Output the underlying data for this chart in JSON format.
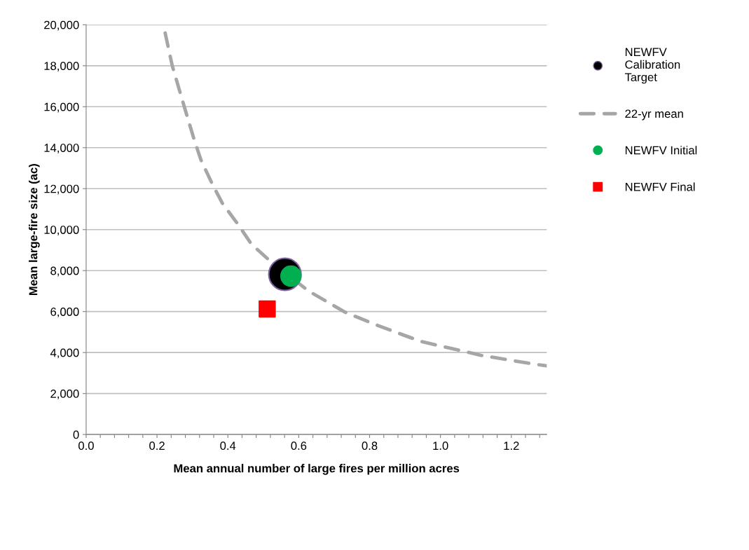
{
  "chart_data": {
    "type": "scatter",
    "xlabel": "Mean annual number of large fires per million acres",
    "ylabel": "Mean large-fire size (ac)",
    "series": [
      {
        "name": "NEWFV\nCalibration\nTarget",
        "marker": "circle",
        "color": "#000000",
        "x": [
          0.561
        ],
        "values": [
          7820
        ]
      },
      {
        "name": "22-yr mean",
        "type": "line",
        "marker": "none",
        "line_style": "dashed",
        "color": "#a6a6a6",
        "x": [
          0.223,
          0.243,
          0.277,
          0.303,
          0.324,
          0.354,
          0.384,
          0.431,
          0.466,
          0.517,
          0.628,
          0.731,
          0.817,
          0.945,
          1.116,
          1.259,
          1.3
        ],
        "values": [
          19600,
          18000,
          16000,
          14500,
          13400,
          12300,
          11300,
          10200,
          9300,
          8500,
          7000,
          5970,
          5360,
          4540,
          3860,
          3450,
          3350
        ]
      },
      {
        "name": "NEWFV Initial",
        "marker": "circle",
        "color": "#00b050",
        "x": [
          0.578
        ],
        "values": [
          7730
        ]
      },
      {
        "name": "NEWFV Final",
        "marker": "square",
        "color": "#ff0000",
        "x": [
          0.511
        ],
        "values": [
          6130
        ]
      }
    ],
    "xlim": [
      0,
      1.3
    ],
    "xticks": [
      {
        "value": 0,
        "label": "0.0"
      },
      {
        "value": 0.04,
        "label": null
      },
      {
        "value": 0.08,
        "label": null
      },
      {
        "value": 0.12,
        "label": null
      },
      {
        "value": 0.16,
        "label": null
      },
      {
        "value": 0.2,
        "label": "0.2"
      },
      {
        "value": 0.24,
        "label": null
      },
      {
        "value": 0.28,
        "label": null
      },
      {
        "value": 0.32,
        "label": null
      },
      {
        "value": 0.36,
        "label": null
      },
      {
        "value": 0.4,
        "label": "0.4"
      },
      {
        "value": 0.44,
        "label": null
      },
      {
        "value": 0.48,
        "label": null
      },
      {
        "value": 0.52,
        "label": null
      },
      {
        "value": 0.56,
        "label": null
      },
      {
        "value": 0.6,
        "label": "0.6"
      },
      {
        "value": 0.64,
        "label": null
      },
      {
        "value": 0.68,
        "label": null
      },
      {
        "value": 0.72,
        "label": null
      },
      {
        "value": 0.76,
        "label": null
      },
      {
        "value": 0.8,
        "label": "0.8"
      },
      {
        "value": 0.84,
        "label": null
      },
      {
        "value": 0.88,
        "label": null
      },
      {
        "value": 0.92,
        "label": null
      },
      {
        "value": 0.96,
        "label": null
      },
      {
        "value": 1.0,
        "label": "1.0"
      },
      {
        "value": 1.04,
        "label": null
      },
      {
        "value": 1.08,
        "label": null
      },
      {
        "value": 1.12,
        "label": null
      },
      {
        "value": 1.16,
        "label": null
      },
      {
        "value": 1.2,
        "label": "1.2"
      },
      {
        "value": 1.24,
        "label": null
      },
      {
        "value": 1.28,
        "label": null
      }
    ],
    "ylim": [
      0,
      20000
    ],
    "yticks": [
      0,
      {
        "value": 2000,
        "label": "2,000"
      },
      {
        "value": 4000,
        "label": "4,000"
      },
      {
        "value": 6000,
        "label": "6,000"
      },
      {
        "value": 8000,
        "label": "8,000"
      },
      {
        "value": 10000,
        "label": "10,000"
      },
      {
        "value": 12000,
        "label": "12,000"
      },
      {
        "value": 14000,
        "label": "14,000"
      },
      {
        "value": 16000,
        "label": "16,000"
      },
      {
        "value": 18000,
        "label": "18,000"
      },
      {
        "value": 20000,
        "label": "20,000"
      }
    ],
    "grid": "y",
    "legend": "right"
  }
}
